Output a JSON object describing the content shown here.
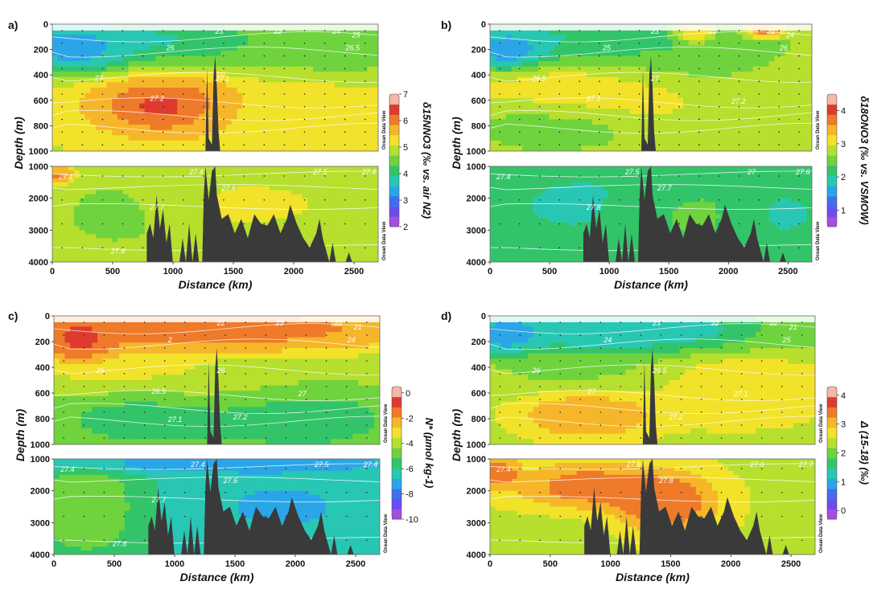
{
  "chart_data": [
    {
      "type": "heatmap",
      "panel": "a)",
      "xlabel": "Distance (km)",
      "ylabel": "Depth (m)",
      "xlim": [
        0,
        2700
      ],
      "x_ticks": [
        "0",
        "500",
        "1000",
        "1500",
        "2000",
        "2500"
      ],
      "upper": {
        "ylim": [
          0,
          1000
        ],
        "y_ticks": [
          "0",
          "200",
          "400",
          "600",
          "800",
          "1000"
        ]
      },
      "lower": {
        "ylim": [
          1000,
          4000
        ],
        "y_ticks": [
          "1000",
          "2000",
          "3000",
          "4000"
        ]
      },
      "colorbar": {
        "title": "δ15NNO3 (‰ vs. air N2)",
        "range": [
          2,
          7
        ],
        "ticks": [
          "2",
          "3",
          "4",
          "5",
          "6",
          "7"
        ]
      },
      "isopycnals_upper": [
        "23",
        "22",
        "24",
        "25",
        "26",
        "26.5",
        "27",
        "27.1",
        "27.2"
      ],
      "isopycnals_lower": [
        "27.4",
        "27.4",
        "27.5",
        "27.4",
        "27.6",
        "27.7",
        "27.8"
      ],
      "watermark": "Ocean Data View"
    },
    {
      "type": "heatmap",
      "panel": "b)",
      "xlabel": "Distance (km)",
      "ylabel": "Depth (m)",
      "xlim": [
        0,
        2700
      ],
      "x_ticks": [
        "0",
        "500",
        "1000",
        "1500",
        "2000",
        "2500"
      ],
      "upper": {
        "ylim": [
          0,
          1000
        ],
        "y_ticks": [
          "0",
          "200",
          "400",
          "600",
          "800",
          "1000"
        ]
      },
      "lower": {
        "ylim": [
          1000,
          4000
        ],
        "y_ticks": [
          "1000",
          "2000",
          "3000",
          "4000"
        ]
      },
      "colorbar": {
        "title": "δ18ONO3 (‰ vs. VSMOW)",
        "range": [
          0.5,
          4.5
        ],
        "ticks": [
          "1",
          "2",
          "3",
          "4"
        ]
      },
      "isopycnals_upper": [
        "23",
        "22",
        "21",
        "24",
        "25",
        "26",
        "26.5",
        "27",
        "27.1",
        "27.2"
      ],
      "isopycnals_lower": [
        "27.4",
        "27.5",
        "27",
        "27.6",
        "27.7",
        "27.8"
      ],
      "watermark": "Ocean Data View"
    },
    {
      "type": "heatmap",
      "panel": "c)",
      "xlabel": "Distance (km)",
      "ylabel": "Depth (m)",
      "xlim": [
        0,
        2700
      ],
      "x_ticks": [
        "0",
        "500",
        "1000",
        "1500",
        "2000",
        "2500"
      ],
      "upper": {
        "ylim": [
          0,
          1000
        ],
        "y_ticks": [
          "0",
          "200",
          "400",
          "600",
          "800",
          "1000"
        ]
      },
      "lower": {
        "ylim": [
          1000,
          4000
        ],
        "y_ticks": [
          "1000",
          "2000",
          "3000",
          "4000"
        ]
      },
      "colorbar": {
        "title": "N* (µmol kg-1)",
        "range": [
          -10,
          0.5
        ],
        "ticks": [
          "0",
          "-2",
          "-4",
          "-6",
          "-8",
          "-10"
        ]
      },
      "isopycnals_upper": [
        "22",
        "23",
        "22",
        "21",
        "2",
        "24",
        "25",
        "26",
        "26.5",
        "27",
        "27.2",
        "27.1"
      ],
      "isopycnals_lower": [
        "27.4",
        "27.4",
        "27.5",
        "27.4",
        "27.6",
        "27.7",
        "27.8"
      ],
      "watermark": "Ocean Data View"
    },
    {
      "type": "heatmap",
      "panel": "d)",
      "xlabel": "Distance (km)",
      "ylabel": "Depth (m)",
      "xlim": [
        0,
        2700
      ],
      "x_ticks": [
        "0",
        "500",
        "1000",
        "1500",
        "2000",
        "2500"
      ],
      "upper": {
        "ylim": [
          0,
          1000
        ],
        "y_ticks": [
          "0",
          "200",
          "400",
          "600",
          "800",
          "1000"
        ]
      },
      "lower": {
        "ylim": [
          1000,
          4000
        ],
        "y_ticks": [
          "1000",
          "2000",
          "3000",
          "4000"
        ]
      },
      "colorbar": {
        "title": "Δ (15-18) (‰)",
        "range": [
          -0.3,
          4.3
        ],
        "ticks": [
          "0",
          "1",
          "2",
          "3",
          "4"
        ]
      },
      "isopycnals_upper": [
        "23",
        "22",
        "22",
        "21",
        "24",
        "25",
        "26",
        "26.5",
        "27",
        "27.1",
        "27.2"
      ],
      "isopycnals_lower": [
        "27.4",
        "27.5",
        "27.6",
        "27.7",
        "27.8"
      ],
      "watermark": "Ocean Data View"
    }
  ]
}
